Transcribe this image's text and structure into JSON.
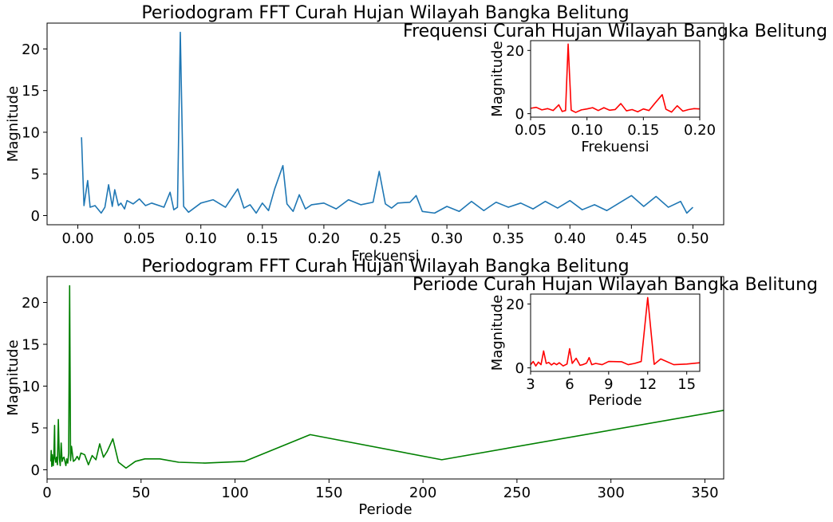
{
  "chart_data": [
    {
      "id": "freq-main",
      "type": "line",
      "title": "Periodogram FFT Curah Hujan Wilayah Bangka Belitung",
      "xlabel": "Frekuensi",
      "ylabel": "Magnitude",
      "xlim": [
        -0.025,
        0.525
      ],
      "ylim": [
        -1.1,
        23.1
      ],
      "xticks": [
        0.0,
        0.05,
        0.1,
        0.15,
        0.2,
        0.25,
        0.3,
        0.35,
        0.4,
        0.45,
        0.5
      ],
      "xtick_labels": [
        "0.00",
        "0.05",
        "0.10",
        "0.15",
        "0.20",
        "0.25",
        "0.30",
        "0.35",
        "0.40",
        "0.45",
        "0.50"
      ],
      "yticks": [
        0,
        5,
        10,
        15,
        20
      ],
      "ytick_labels": [
        "0",
        "5",
        "10",
        "15",
        "20"
      ],
      "color": "#1f77b4",
      "grid": false,
      "series": [
        {
          "x": [
            0.003,
            0.005,
            0.008,
            0.01,
            0.014,
            0.019,
            0.022,
            0.025,
            0.028,
            0.03,
            0.033,
            0.035,
            0.038,
            0.04,
            0.045,
            0.05,
            0.055,
            0.06,
            0.07,
            0.075,
            0.078,
            0.081,
            0.0833,
            0.086,
            0.09,
            0.1,
            0.11,
            0.12,
            0.13,
            0.135,
            0.14,
            0.145,
            0.15,
            0.155,
            0.16,
            0.1667,
            0.17,
            0.175,
            0.18,
            0.185,
            0.19,
            0.2,
            0.21,
            0.22,
            0.23,
            0.24,
            0.245,
            0.25,
            0.255,
            0.26,
            0.27,
            0.275,
            0.28,
            0.29,
            0.3,
            0.31,
            0.32,
            0.33,
            0.34,
            0.35,
            0.36,
            0.37,
            0.38,
            0.39,
            0.4,
            0.41,
            0.42,
            0.43,
            0.44,
            0.45,
            0.46,
            0.47,
            0.48,
            0.49,
            0.495,
            0.5
          ],
          "y": [
            9.4,
            1.2,
            4.2,
            1.0,
            1.2,
            0.3,
            1.0,
            3.7,
            1.1,
            3.1,
            1.2,
            1.5,
            0.8,
            1.8,
            1.4,
            2.0,
            1.2,
            1.5,
            1.0,
            2.8,
            0.7,
            1.0,
            22.0,
            1.1,
            0.4,
            1.5,
            1.9,
            1.0,
            3.2,
            0.9,
            1.3,
            0.3,
            1.5,
            0.6,
            3.2,
            6.0,
            1.4,
            0.5,
            2.5,
            0.8,
            1.3,
            1.5,
            0.8,
            1.9,
            1.3,
            1.6,
            5.3,
            1.4,
            0.9,
            1.5,
            1.6,
            2.4,
            0.5,
            0.3,
            1.1,
            0.5,
            1.7,
            0.6,
            1.6,
            1.0,
            1.5,
            0.8,
            1.7,
            0.9,
            1.8,
            0.7,
            1.3,
            0.6,
            1.5,
            2.4,
            1.1,
            2.3,
            1.0,
            1.7,
            0.3,
            1.0
          ]
        }
      ]
    },
    {
      "id": "freq-inset",
      "type": "line",
      "title": "Frequensi Curah Hujan Wilayah Bangka Belitung",
      "xlabel": "Frekuensi",
      "ylabel": "Magnitude",
      "xlim": [
        0.05,
        0.2
      ],
      "ylim": [
        -1.1,
        23.1
      ],
      "xticks": [
        0.05,
        0.1,
        0.15,
        0.2
      ],
      "xtick_labels": [
        "0.05",
        "0.10",
        "0.15",
        "0.20"
      ],
      "yticks": [
        0,
        20
      ],
      "ytick_labels": [
        "0",
        "20"
      ],
      "color": "#ff0000",
      "grid": false,
      "series": [
        {
          "x": [
            0.05,
            0.055,
            0.06,
            0.065,
            0.07,
            0.075,
            0.078,
            0.081,
            0.0833,
            0.086,
            0.09,
            0.095,
            0.1,
            0.105,
            0.11,
            0.115,
            0.12,
            0.125,
            0.13,
            0.135,
            0.14,
            0.145,
            0.15,
            0.155,
            0.16,
            0.1667,
            0.17,
            0.175,
            0.18,
            0.185,
            0.19,
            0.195,
            0.2
          ],
          "y": [
            1.7,
            2.0,
            1.2,
            1.6,
            1.0,
            2.8,
            0.7,
            1.0,
            22.0,
            1.1,
            0.4,
            1.2,
            1.5,
            1.9,
            1.0,
            1.9,
            1.1,
            1.3,
            3.2,
            0.9,
            1.3,
            0.6,
            1.5,
            1.0,
            3.2,
            6.0,
            1.4,
            0.5,
            2.5,
            0.8,
            1.3,
            1.6,
            1.5
          ]
        }
      ]
    },
    {
      "id": "period-main",
      "type": "line",
      "title": "Periodogram FFT Curah Hujan Wilayah Bangka Belitung",
      "xlabel": "Periode",
      "ylabel": "Magnitude",
      "xlim": [
        0,
        360
      ],
      "ylim": [
        -1.1,
        23.1
      ],
      "xticks": [
        0,
        50,
        100,
        150,
        200,
        250,
        300,
        350
      ],
      "xtick_labels": [
        "0",
        "50",
        "100",
        "150",
        "200",
        "250",
        "300",
        "350"
      ],
      "yticks": [
        0,
        5,
        10,
        15,
        20
      ],
      "ytick_labels": [
        "0",
        "5",
        "10",
        "15",
        "20"
      ],
      "color": "#008000",
      "grid": false,
      "series": [
        {
          "x": [
            2.0,
            2.2,
            2.5,
            2.8,
            3.0,
            3.3,
            3.6,
            4.0,
            4.2,
            4.6,
            5.0,
            5.5,
            6.0,
            6.5,
            7.0,
            7.5,
            8.0,
            8.5,
            9.0,
            10.0,
            10.5,
            11.0,
            11.5,
            12.0,
            12.5,
            13.0,
            14.0,
            15.0,
            16.0,
            17.0,
            18.0,
            20.0,
            22.0,
            24.0,
            26.0,
            28.0,
            30.0,
            32.0,
            35.0,
            38.0,
            42.0,
            47.0,
            52.0,
            60.0,
            70.0,
            84.0,
            105.0,
            140.0,
            210.0,
            360.0
          ],
          "y": [
            1.0,
            2.3,
            0.4,
            1.8,
            1.0,
            0.5,
            1.6,
            5.3,
            1.4,
            0.9,
            1.5,
            0.6,
            6.0,
            1.4,
            0.5,
            3.2,
            1.0,
            1.4,
            1.5,
            0.5,
            1.3,
            0.8,
            2.0,
            22.0,
            1.1,
            2.8,
            1.0,
            1.2,
            1.6,
            1.2,
            2.0,
            1.8,
            0.6,
            1.7,
            1.2,
            3.1,
            1.5,
            2.2,
            3.7,
            0.9,
            0.2,
            1.0,
            1.3,
            1.3,
            0.9,
            0.8,
            1.0,
            4.2,
            1.2,
            7.1
          ]
        }
      ]
    },
    {
      "id": "period-inset",
      "type": "line",
      "title": "Periode Curah Hujan Wilayah Bangka Belitung",
      "xlabel": "Periode",
      "ylabel": "Magnitude",
      "xlim": [
        3,
        16
      ],
      "ylim": [
        -1.1,
        23.1
      ],
      "xticks": [
        3,
        6,
        9,
        12,
        15
      ],
      "xtick_labels": [
        "3",
        "6",
        "9",
        "12",
        "15"
      ],
      "yticks": [
        0,
        20
      ],
      "ytick_labels": [
        "0",
        "20"
      ],
      "color": "#ff0000",
      "grid": false,
      "series": [
        {
          "x": [
            3.0,
            3.2,
            3.4,
            3.6,
            3.8,
            4.0,
            4.2,
            4.4,
            4.6,
            4.8,
            5.0,
            5.2,
            5.5,
            5.8,
            6.0,
            6.2,
            6.5,
            6.8,
            7.0,
            7.3,
            7.5,
            7.7,
            8.0,
            8.5,
            9.0,
            10.0,
            10.5,
            11.0,
            11.5,
            12.0,
            12.5,
            13.0,
            14.0,
            15.0,
            16.0
          ],
          "y": [
            1.0,
            2.0,
            0.6,
            1.8,
            1.0,
            5.3,
            1.4,
            1.7,
            0.9,
            1.5,
            1.0,
            1.6,
            0.6,
            1.2,
            6.0,
            1.4,
            3.0,
            0.8,
            1.0,
            1.5,
            3.2,
            1.0,
            1.4,
            1.0,
            2.0,
            1.9,
            1.0,
            1.4,
            2.0,
            22.0,
            1.1,
            2.8,
            1.0,
            1.2,
            1.6
          ]
        }
      ]
    }
  ]
}
